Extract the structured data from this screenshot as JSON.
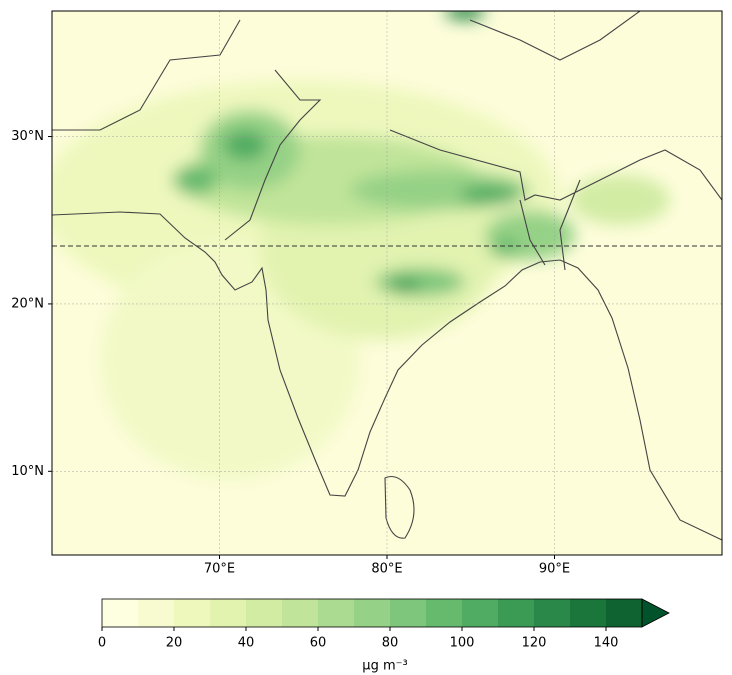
{
  "map": {
    "xlim": [
      60,
      100
    ],
    "ylim": [
      5,
      37.5
    ],
    "xticks": [
      {
        "value": 70,
        "label": "70°E"
      },
      {
        "value": 80,
        "label": "80°E"
      },
      {
        "value": 90,
        "label": "90°E"
      }
    ],
    "yticks": [
      {
        "value": 10,
        "label": "10°N"
      },
      {
        "value": 20,
        "label": "20°N"
      },
      {
        "value": 30,
        "label": "30°N"
      }
    ],
    "grid": true
  },
  "colorbar": {
    "levels": [
      0,
      10,
      20,
      30,
      40,
      50,
      60,
      70,
      80,
      90,
      100,
      110,
      120,
      130,
      140,
      150
    ],
    "colors": [
      "#fefee0",
      "#f7fbcf",
      "#eef8bd",
      "#e2f3b0",
      "#d2eca4",
      "#c0e49a",
      "#abdb90",
      "#95d186",
      "#7ec67b",
      "#66ba6e",
      "#4fac62",
      "#3b9b55",
      "#2a8948",
      "#1b763c",
      "#0e6331"
    ],
    "extend_color": "#00532b",
    "ticks": [
      0,
      20,
      40,
      60,
      80,
      100,
      120,
      140
    ],
    "label": "μg m⁻³"
  }
}
